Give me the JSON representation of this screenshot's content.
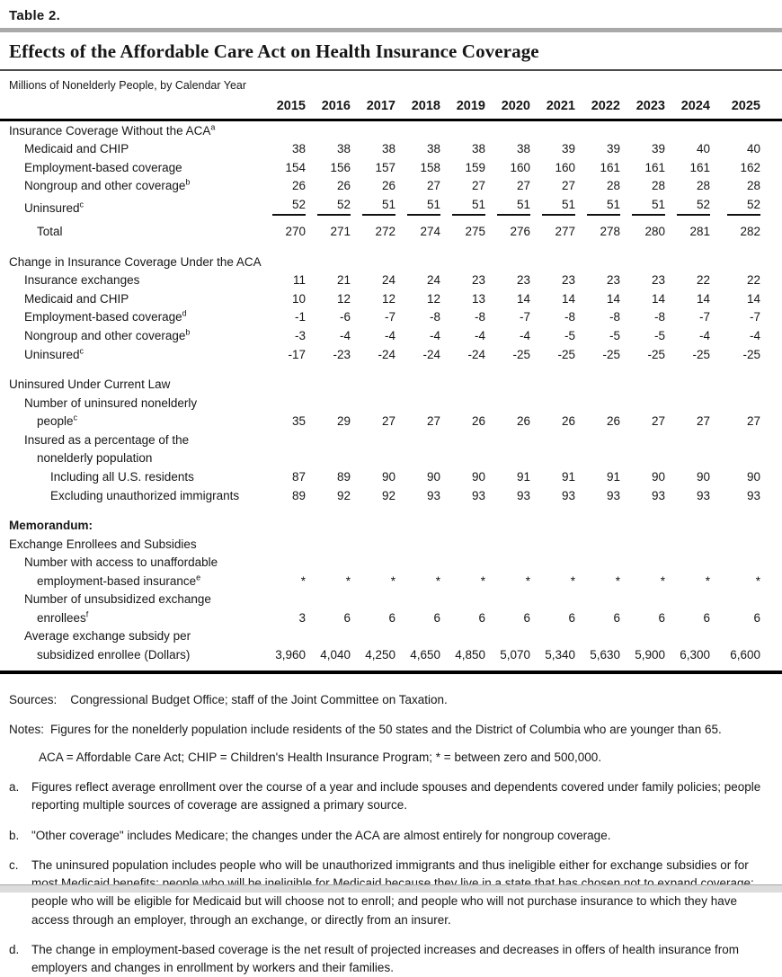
{
  "page": {
    "table_label": "Table 2.",
    "title": "Effects of the Affordable Care Act on Health Insurance Coverage",
    "subtitle": "Millions of Nonelderly People, by Calendar Year"
  },
  "table": {
    "years": [
      "2015",
      "2016",
      "2017",
      "2018",
      "2019",
      "2020",
      "2021",
      "2022",
      "2023",
      "2024",
      "2025"
    ],
    "sections": [
      {
        "rows": [
          {
            "label": "Insurance Coverage Without the ACA",
            "sup": "a",
            "indent": 0,
            "values": null
          },
          {
            "label": "Medicaid and CHIP",
            "indent": 1,
            "values": [
              "38",
              "38",
              "38",
              "38",
              "38",
              "38",
              "39",
              "39",
              "39",
              "40",
              "40"
            ]
          },
          {
            "label": "Employment-based coverage",
            "indent": 1,
            "values": [
              "154",
              "156",
              "157",
              "158",
              "159",
              "160",
              "160",
              "161",
              "161",
              "161",
              "162"
            ]
          },
          {
            "label": "Nongroup and other coverage",
            "sup": "b",
            "indent": 1,
            "values": [
              "26",
              "26",
              "26",
              "27",
              "27",
              "27",
              "27",
              "28",
              "28",
              "28",
              "28"
            ]
          },
          {
            "label": "Uninsured",
            "sup": "c",
            "indent": 1,
            "underline": true,
            "values": [
              "52",
              "52",
              "51",
              "51",
              "51",
              "51",
              "51",
              "51",
              "51",
              "52",
              "52"
            ]
          },
          {
            "label": "Total",
            "indent": 2,
            "total": true,
            "values": [
              "270",
              "271",
              "272",
              "274",
              "275",
              "276",
              "277",
              "278",
              "280",
              "281",
              "282"
            ]
          }
        ]
      },
      {
        "rows": [
          {
            "label": "Change in Insurance Coverage Under the ACA",
            "indent": 0,
            "values": null
          },
          {
            "label": "Insurance exchanges",
            "indent": 1,
            "values": [
              "11",
              "21",
              "24",
              "24",
              "23",
              "23",
              "23",
              "23",
              "23",
              "22",
              "22"
            ]
          },
          {
            "label": "Medicaid and CHIP",
            "indent": 1,
            "values": [
              "10",
              "12",
              "12",
              "12",
              "13",
              "14",
              "14",
              "14",
              "14",
              "14",
              "14"
            ]
          },
          {
            "label": "Employment-based coverage",
            "sup": "d",
            "indent": 1,
            "values": [
              "-1",
              "-6",
              "-7",
              "-8",
              "-8",
              "-7",
              "-8",
              "-8",
              "-8",
              "-7",
              "-7"
            ]
          },
          {
            "label": "Nongroup and other coverage",
            "sup": "b",
            "indent": 1,
            "values": [
              "-3",
              "-4",
              "-4",
              "-4",
              "-4",
              "-4",
              "-5",
              "-5",
              "-5",
              "-4",
              "-4"
            ]
          },
          {
            "label": "Uninsured",
            "sup": "c",
            "indent": 1,
            "values": [
              "-17",
              "-23",
              "-24",
              "-24",
              "-24",
              "-25",
              "-25",
              "-25",
              "-25",
              "-25",
              "-25"
            ]
          }
        ]
      },
      {
        "rows": [
          {
            "label": "Uninsured Under Current Law",
            "indent": 0,
            "values": null
          },
          {
            "label": "Number of uninsured nonelderly",
            "indent": 1,
            "values": null
          },
          {
            "label": "people",
            "sup": "c",
            "indent": 2,
            "values": [
              "35",
              "29",
              "27",
              "27",
              "26",
              "26",
              "26",
              "26",
              "27",
              "27",
              "27"
            ]
          },
          {
            "label": "Insured as a percentage of the",
            "indent": 1,
            "values": null
          },
          {
            "label": "nonelderly population",
            "indent": 2,
            "values": null
          },
          {
            "label": "Including all U.S. residents",
            "indent": 3,
            "values": [
              "87",
              "89",
              "90",
              "90",
              "90",
              "91",
              "91",
              "91",
              "90",
              "90",
              "90"
            ]
          },
          {
            "label": "Excluding unauthorized immigrants",
            "indent": 3,
            "values": [
              "89",
              "92",
              "92",
              "93",
              "93",
              "93",
              "93",
              "93",
              "93",
              "93",
              "93"
            ]
          }
        ]
      },
      {
        "rows": [
          {
            "label": "Memorandum:",
            "indent": 0,
            "bold": true,
            "values": null
          },
          {
            "label": "Exchange Enrollees and Subsidies",
            "indent": 0,
            "values": null
          },
          {
            "label": "Number with access to unaffordable",
            "indent": 1,
            "values": null
          },
          {
            "label": "employment-based insurance",
            "sup": "e",
            "indent": 2,
            "values": [
              "*",
              "*",
              "*",
              "*",
              "*",
              "*",
              "*",
              "*",
              "*",
              "*",
              "*"
            ]
          },
          {
            "label": "Number of unsubsidized exchange",
            "indent": 1,
            "values": null
          },
          {
            "label": "enrollees",
            "sup": "f",
            "indent": 2,
            "values": [
              "3",
              "6",
              "6",
              "6",
              "6",
              "6",
              "6",
              "6",
              "6",
              "6",
              "6"
            ]
          },
          {
            "label": "Average exchange subsidy per",
            "indent": 1,
            "values": null
          },
          {
            "label": "subsidized enrollee (Dollars)",
            "indent": 2,
            "values": [
              "3,960",
              "4,040",
              "4,250",
              "4,650",
              "4,850",
              "5,070",
              "5,340",
              "5,630",
              "5,900",
              "6,300",
              "6,600"
            ]
          }
        ]
      }
    ]
  },
  "footer": {
    "sources_label": "Sources:",
    "sources_text": "Congressional Budget Office; staff of the Joint Committee on Taxation.",
    "notes_label": "Notes:",
    "notes_text": "Figures for the nonelderly population include residents of the 50 states and the District of Columbia who are younger than 65.",
    "notes_text2": "ACA = Affordable Care Act; CHIP = Children's Health Insurance Program; * = between zero and 500,000.",
    "footnotes": [
      {
        "marker": "a.",
        "text": "Figures reflect average enrollment over the course of a year and include spouses and dependents covered under family policies; people reporting multiple sources of coverage are assigned a primary source."
      },
      {
        "marker": "b.",
        "text": "\"Other coverage\" includes Medicare; the changes under the ACA are almost entirely for nongroup coverage."
      },
      {
        "marker": "c.",
        "text": "The uninsured population includes people who will be unauthorized immigrants and thus ineligible either for exchange subsidies or for most Medicaid benefits; people who will be ineligible for Medicaid because they live in a state that has chosen not to expand coverage; people who will be eligible for Medicaid but will choose not to enroll; and people who will not purchase insurance to which they have access through an employer, through an exchange, or directly from an insurer."
      },
      {
        "marker": "d.",
        "text": "The change in employment-based coverage is the net result of projected increases and decreases in offers of health insurance from employers and changes in enrollment by workers and their families."
      }
    ]
  },
  "colors": {
    "rule_gray": "#a9a9a9",
    "rule_black": "#000000",
    "text": "#161616",
    "scrollbar_track": "#dcdcdc"
  }
}
